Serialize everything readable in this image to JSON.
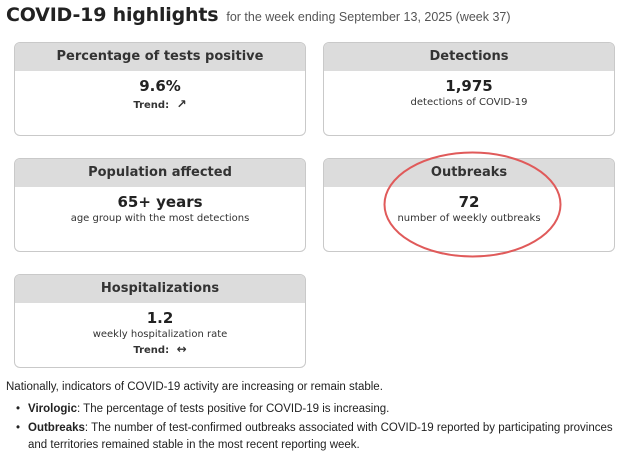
{
  "header": {
    "title": "COVID-19 highlights",
    "subtitle": "for the week ending September 13, 2025 (week 37)"
  },
  "cards": {
    "tests": {
      "title": "Percentage of tests positive",
      "value": "9.6%",
      "trend_label": "Trend:",
      "trend_icon": "arrow-up-right-icon",
      "trend_glyph": "↗"
    },
    "detections": {
      "title": "Detections",
      "value": "1,975",
      "description": "detections of COVID-19"
    },
    "population": {
      "title": "Population affected",
      "value": "65+ years",
      "description": "age group with the most detections"
    },
    "outbreaks": {
      "title": "Outbreaks",
      "value": "72",
      "description": "number of weekly outbreaks"
    },
    "hospitalizations": {
      "title": "Hospitalizations",
      "value": "1.2",
      "description": "weekly hospitalization rate",
      "trend_label": "Trend:",
      "trend_icon": "arrow-left-right-icon",
      "trend_glyph": "↔"
    }
  },
  "colors": {
    "card_header_bg": "#dcdcdc",
    "highlight": "#e05a5a"
  },
  "summary": "Nationally, indicators of COVID-19 activity are increasing or remain stable.",
  "bullets": [
    {
      "label": "Virologic",
      "text": ": The percentage of tests positive for COVID-19 is increasing."
    },
    {
      "label": "Outbreaks",
      "text": ": The number of test-confirmed outbreaks associated with COVID-19 reported by participating provinces and territories remained stable in the most recent reporting week."
    }
  ]
}
